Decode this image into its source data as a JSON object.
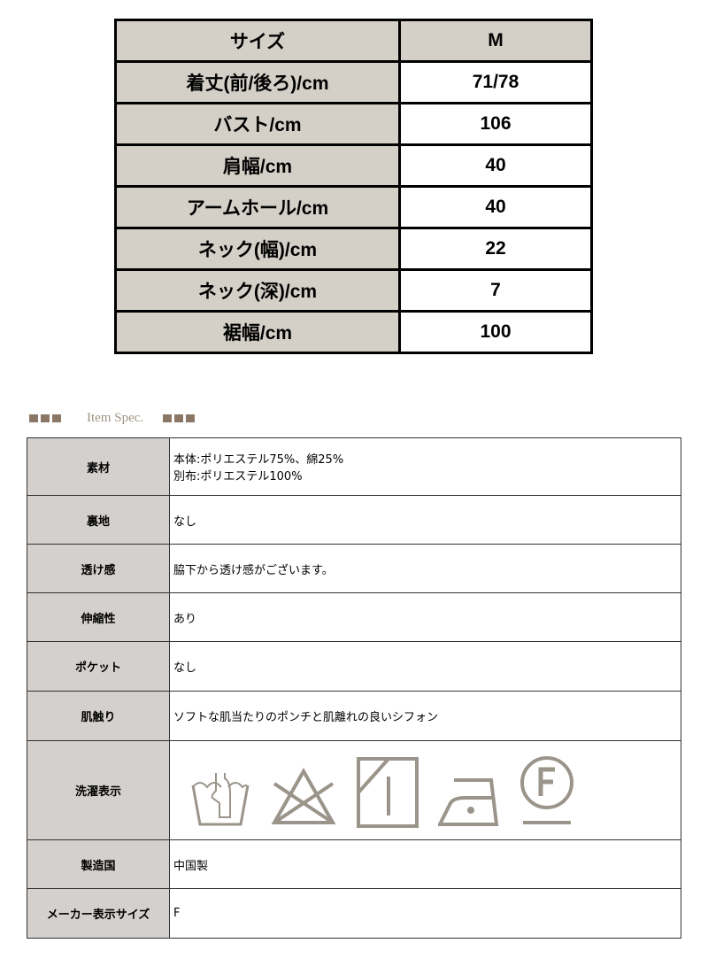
{
  "size_table": {
    "header": [
      "サイズ",
      "M"
    ],
    "rows": [
      {
        "label": "着丈(前/後ろ)/cm",
        "value": "71/78"
      },
      {
        "label": "バスト/cm",
        "value": "106"
      },
      {
        "label": "肩幅/cm",
        "value": "40"
      },
      {
        "label": "アームホール/cm",
        "value": "40"
      },
      {
        "label": "ネック(幅)/cm",
        "value": "22"
      },
      {
        "label": "ネック(深)/cm",
        "value": "7"
      },
      {
        "label": "裾幅/cm",
        "value": "100"
      }
    ]
  },
  "spec": {
    "heading": "Item Spec.",
    "rows": [
      {
        "label": "素材",
        "lines": [
          "本体:ポリエステル75%、綿25%",
          "別布:ポリエステル100%"
        ]
      },
      {
        "label": "裏地",
        "lines": [
          "なし"
        ]
      },
      {
        "label": "透け感",
        "lines": [
          "脇下から透け感がございます。"
        ]
      },
      {
        "label": "伸縮性",
        "lines": [
          "あり"
        ]
      },
      {
        "label": "ポケット",
        "lines": [
          "なし"
        ]
      },
      {
        "label": "肌触り",
        "lines": [
          "ソフトな肌当たりのポンチと肌離れの良いシフォン"
        ]
      },
      {
        "label": "洗濯表示",
        "icons": [
          "hand-wash-icon",
          "no-bleach-icon",
          "drip-dry-shade-icon",
          "iron-low-icon",
          "dry-clean-f-icon"
        ]
      },
      {
        "label": "製造国",
        "lines": [
          "中国製"
        ]
      },
      {
        "label": "メーカー表示サイズ",
        "lines": [
          "F"
        ]
      }
    ]
  },
  "colors": {
    "icon": "#9a948a",
    "header_cell": "#d4d0c8",
    "accent_square": "#8a7765"
  }
}
